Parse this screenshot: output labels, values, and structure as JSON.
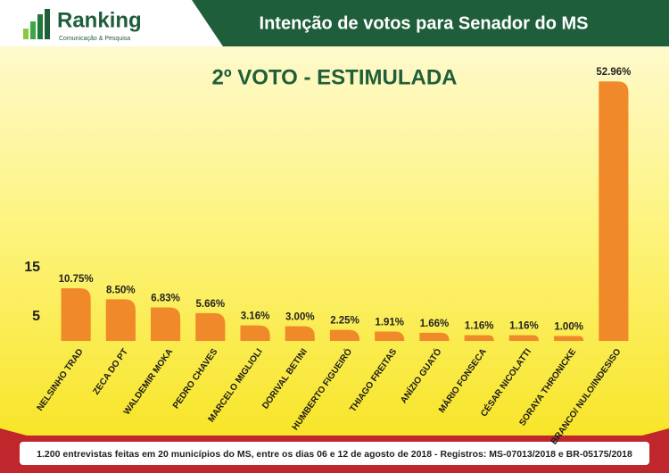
{
  "header": {
    "logo": "Ranking",
    "logo_subtitle": "Comunicação & Pesquisa",
    "title": "Intenção de votos para Senador do MS"
  },
  "chart_data": {
    "type": "bar",
    "title": "2º VOTO - ESTIMULADA",
    "categories": [
      "NELSINHO TRAD",
      "ZECA DO PT",
      "WALDEMIR MOKA",
      "PEDRO CHAVES",
      "MARCELO MIGLIOLI",
      "DORIVAL BETINI",
      "HUMBERTO FIGUEIRÓ",
      "THIAGO FREITAS",
      "ANÍZIO GUATÓ",
      "MÁRIO FONSECA",
      "CÉSAR NICOLATTI",
      "SORAYA THRONICKE",
      "BRANCO/ NULO/INDESISO"
    ],
    "values": [
      10.75,
      8.5,
      6.83,
      5.66,
      3.16,
      3.0,
      2.25,
      1.91,
      1.66,
      1.16,
      1.16,
      1.0,
      52.96
    ],
    "value_labels": [
      "10.75%",
      "8.50%",
      "6.83%",
      "5.66%",
      "3.16%",
      "3.00%",
      "2.25%",
      "1.91%",
      "1.66%",
      "1.16%",
      "1.16%",
      "1.00%",
      "52.96%"
    ],
    "color": "#f0892a",
    "ylim": [
      0,
      55
    ],
    "yticks": [
      5,
      15
    ],
    "grid": false
  },
  "footer": {
    "text": "1.200 entrevistas feitas em 20 municípios do MS, entre os dias 06 e 12 de agosto de 2018 - Registros: MS-07013/2018 e BR-05175/2018"
  }
}
